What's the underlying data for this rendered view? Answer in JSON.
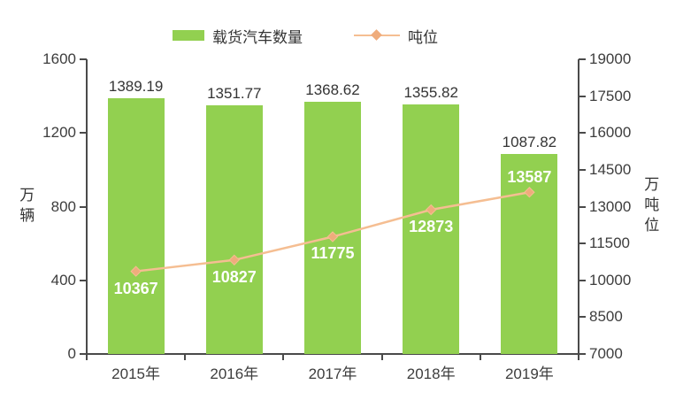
{
  "chart_data": {
    "type": "bar",
    "title": "",
    "categories": [
      "2015年",
      "2016年",
      "2017年",
      "2018年",
      "2019年"
    ],
    "series": [
      {
        "name": "载货汽车数量",
        "type": "bar",
        "axis": "left",
        "color": "#92D050",
        "values": [
          1389.19,
          1351.77,
          1368.62,
          1355.82,
          1087.82
        ]
      },
      {
        "name": "吨位",
        "type": "line",
        "axis": "right",
        "color": "#F5BE92",
        "marker_color": "#EFAC7C",
        "label_color": "#FFFFFF",
        "values": [
          10367,
          10827,
          11775,
          12873,
          13587
        ]
      }
    ],
    "left_axis": {
      "label": "万辆",
      "min": 0,
      "max": 1600,
      "step": 400,
      "ticks": [
        1600,
        1200,
        800,
        400,
        0
      ]
    },
    "right_axis": {
      "label": "万吨位",
      "min": 7000,
      "max": 19000,
      "step": 1500,
      "ticks": [
        19000,
        17500,
        16000,
        14500,
        13000,
        11500,
        10000,
        8500,
        7000
      ]
    },
    "legend_position": "top",
    "grid": false,
    "axis_color": "#4a4a4a"
  }
}
